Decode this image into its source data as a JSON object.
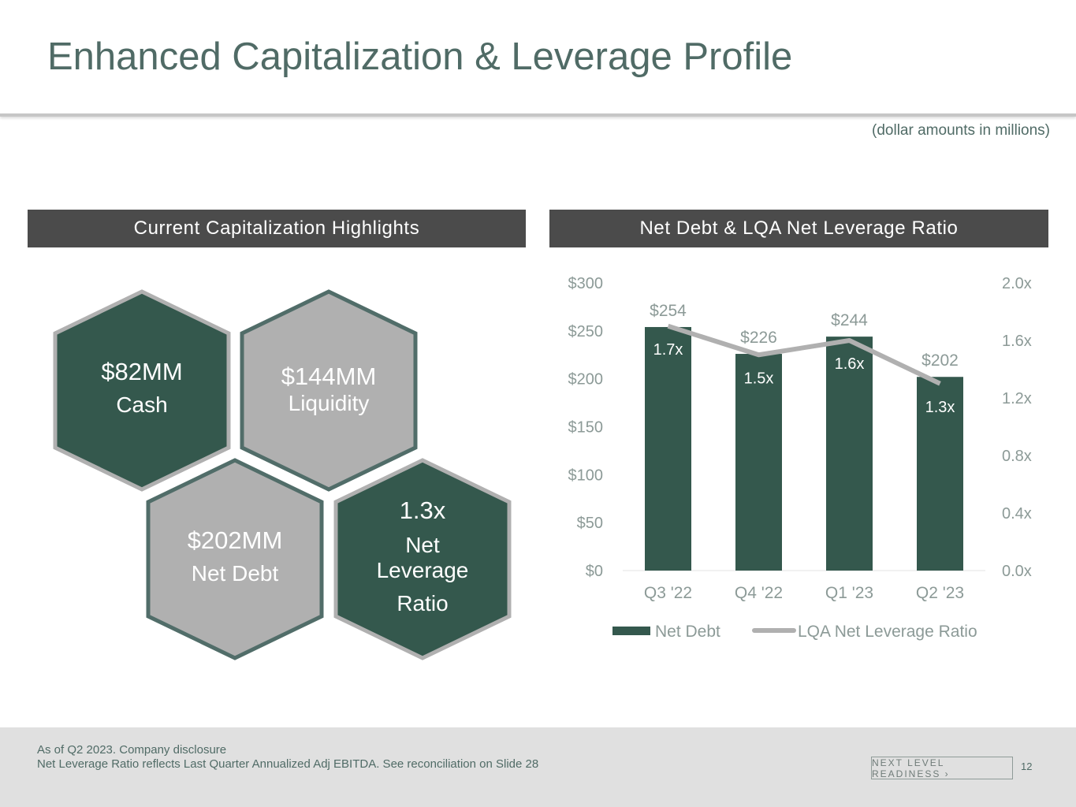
{
  "title": "Enhanced Capitalization & Leverage Profile",
  "units_note": "(dollar amounts in millions)",
  "left_panel": {
    "heading": "Current Capitalization Highlights",
    "hexagons": [
      {
        "value": "$82MM",
        "label": "Cash",
        "fill": "#34584d",
        "stroke": "#b0b0b0"
      },
      {
        "value": "$144MM",
        "label": "Liquidity",
        "fill": "#b0b0b0",
        "stroke": "#516d69"
      },
      {
        "value": "$202MM",
        "label": "Net Debt",
        "fill": "#b0b0b0",
        "stroke": "#516d69"
      },
      {
        "value": "1.3x",
        "label_line1": "Net",
        "label_line2": "Leverage",
        "label_line3": "Ratio",
        "fill": "#34584d",
        "stroke": "#b0b0b0"
      }
    ]
  },
  "right_panel": {
    "heading": "Net Debt & LQA Net Leverage Ratio"
  },
  "chart_data": {
    "type": "bar",
    "categories": [
      "Q3 '22",
      "Q4 '22",
      "Q1 '23",
      "Q2 '23"
    ],
    "series": [
      {
        "name": "Net Debt",
        "type": "bar",
        "values": [
          254,
          226,
          244,
          202
        ],
        "labels": [
          "$254",
          "$226",
          "$244",
          "$202"
        ],
        "color": "#34584d"
      },
      {
        "name": "LQA Net Leverage Ratio",
        "type": "line",
        "values": [
          1.7,
          1.5,
          1.6,
          1.3
        ],
        "labels": [
          "1.7x",
          "1.5x",
          "1.6x",
          "1.3x"
        ],
        "color": "#b0b0b0"
      }
    ],
    "y_left": {
      "min": 0,
      "max": 300,
      "ticks": [
        "$0",
        "$50",
        "$100",
        "$150",
        "$200",
        "$250",
        "$300"
      ]
    },
    "y_right": {
      "min": 0,
      "max": 2.0,
      "ticks": [
        "0.0x",
        "0.4x",
        "0.8x",
        "1.2x",
        "1.6x",
        "2.0x"
      ]
    },
    "legend": "bottom",
    "grid": false
  },
  "footer": {
    "note_line1": "As of Q2 2023. Company disclosure",
    "note_line2": "Net Leverage Ratio reflects Last Quarter Annualized Adj EBITDA. See reconciliation on Slide 28",
    "brand": "NEXT LEVEL READINESS ›",
    "page_number": "12"
  },
  "colors": {
    "title": "#506b66",
    "header_bg": "#4b4b4b",
    "dark_green": "#34584d",
    "gray": "#b0b0b0",
    "axis_text": "#8c9a97"
  }
}
